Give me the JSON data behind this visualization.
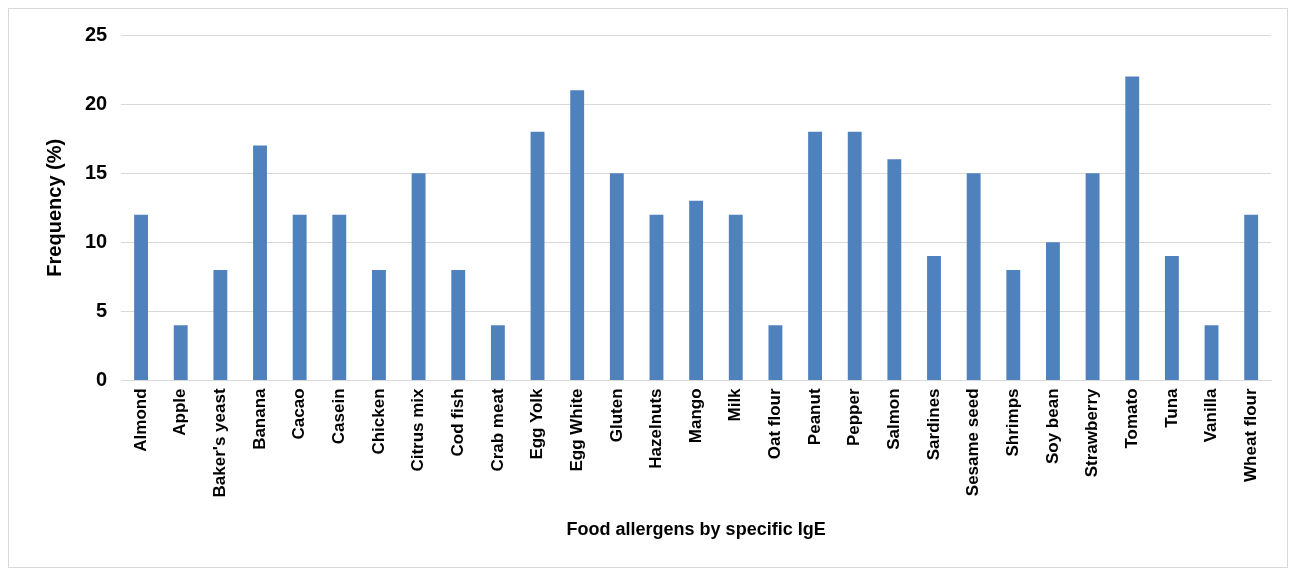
{
  "chart_data": {
    "type": "bar",
    "xlabel": "Food allergens by specific IgE",
    "ylabel": "Frequency (%)",
    "categories": [
      "Almond",
      "Apple",
      "Baker's yeast",
      "Banana",
      "Cacao",
      "Casein",
      "Chicken",
      "Citrus mix",
      "Cod fish",
      "Crab meat",
      "Egg Yolk",
      "Egg White",
      "Gluten",
      "Hazelnuts",
      "Mango",
      "Milk",
      "Oat flour",
      "Peanut",
      "Pepper",
      "Salmon",
      "Sardines",
      "Sesame seed",
      "Shrimps",
      "Soy bean",
      "Strawberry",
      "Tomato",
      "Tuna",
      "Vanilla",
      "Wheat flour"
    ],
    "values": [
      12,
      4,
      8,
      17,
      12,
      12,
      8,
      15,
      8,
      4,
      18,
      21,
      15,
      12,
      13,
      12,
      4,
      18,
      18,
      16,
      9,
      15,
      8,
      10,
      15,
      22,
      9,
      4,
      12
    ],
    "color": "#4f81bd",
    "ylim": [
      0,
      25
    ],
    "yticks": [
      0,
      5,
      10,
      15,
      20,
      25
    ],
    "grid": "y",
    "legend": false
  }
}
